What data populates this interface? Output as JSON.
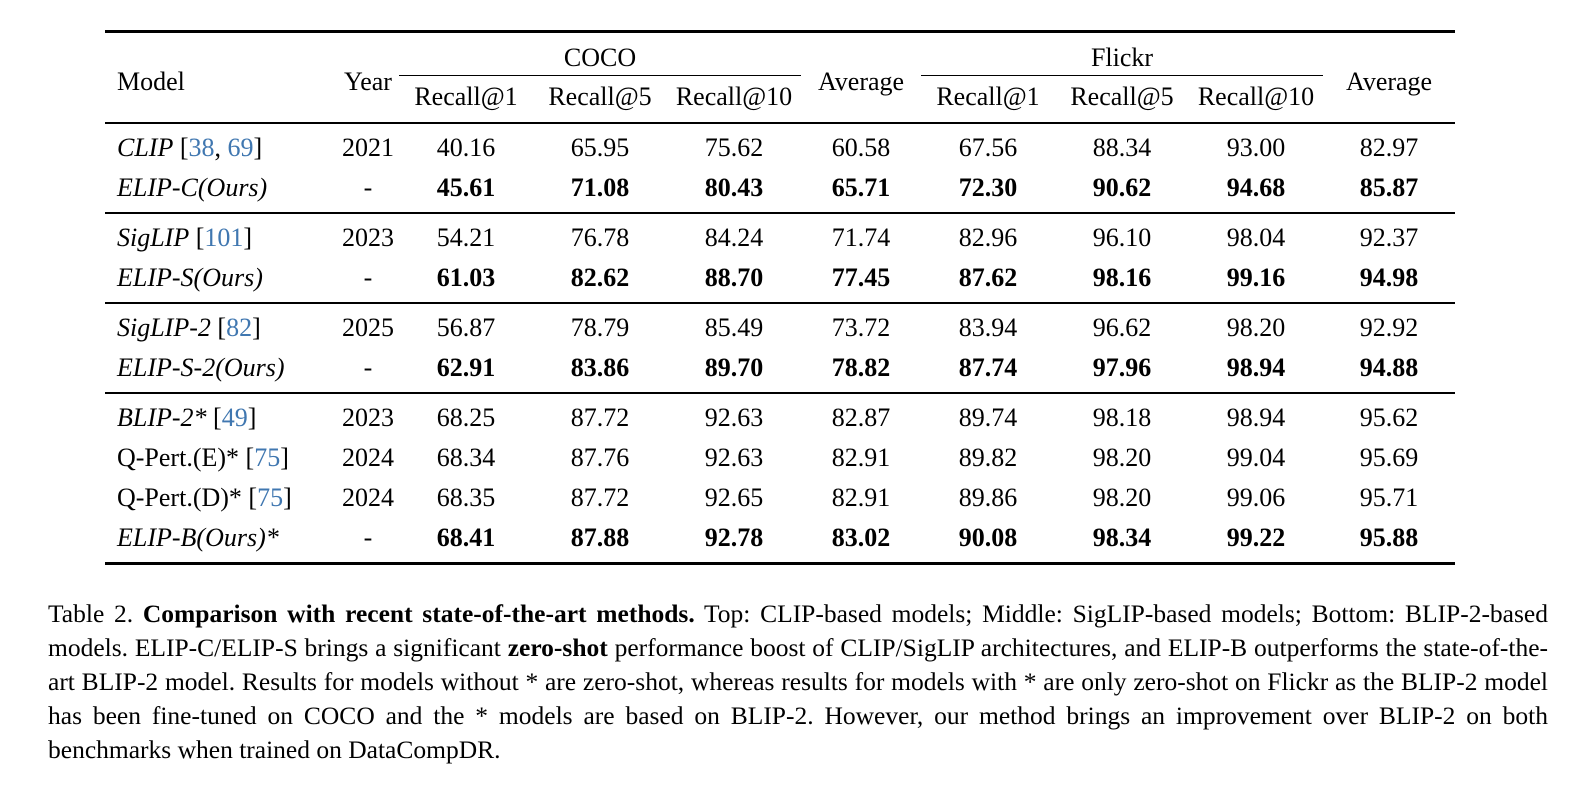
{
  "accent_color": "#4077b0",
  "table": {
    "headers": {
      "model": "Model",
      "year": "Year",
      "coco": "COCO",
      "flickr": "Flickr",
      "average_coco": "Average",
      "average_flickr": "Average",
      "recall1_coco": "Recall@1",
      "recall5_coco": "Recall@5",
      "recall10_coco": "Recall@10",
      "recall1_flickr": "Recall@1",
      "recall5_flickr": "Recall@5",
      "recall10_flickr": "Recall@10"
    },
    "groups": [
      {
        "rows": [
          {
            "model": "CLIP",
            "model_italic": true,
            "refs": [
              "38",
              "69"
            ],
            "year": "2021",
            "bold": false,
            "coco": [
              "40.16",
              "65.95",
              "75.62"
            ],
            "coco_avg": "60.58",
            "flickr": [
              "67.56",
              "88.34",
              "93.00"
            ],
            "flickr_avg": "82.97"
          },
          {
            "model": "ELIP-C(Ours)",
            "model_italic": true,
            "refs": [],
            "year": "-",
            "bold": true,
            "coco": [
              "45.61",
              "71.08",
              "80.43"
            ],
            "coco_avg": "65.71",
            "flickr": [
              "72.30",
              "90.62",
              "94.68"
            ],
            "flickr_avg": "85.87"
          }
        ]
      },
      {
        "rows": [
          {
            "model": "SigLIP",
            "model_italic": true,
            "refs": [
              "101"
            ],
            "year": "2023",
            "bold": false,
            "coco": [
              "54.21",
              "76.78",
              "84.24"
            ],
            "coco_avg": "71.74",
            "flickr": [
              "82.96",
              "96.10",
              "98.04"
            ],
            "flickr_avg": "92.37"
          },
          {
            "model": "ELIP-S(Ours)",
            "model_italic": true,
            "refs": [],
            "year": "-",
            "bold": true,
            "coco": [
              "61.03",
              "82.62",
              "88.70"
            ],
            "coco_avg": "77.45",
            "flickr": [
              "87.62",
              "98.16",
              "99.16"
            ],
            "flickr_avg": "94.98"
          }
        ]
      },
      {
        "rows": [
          {
            "model": "SigLIP-2",
            "model_italic": true,
            "refs": [
              "82"
            ],
            "year": "2025",
            "bold": false,
            "coco": [
              "56.87",
              "78.79",
              "85.49"
            ],
            "coco_avg": "73.72",
            "flickr": [
              "83.94",
              "96.62",
              "98.20"
            ],
            "flickr_avg": "92.92"
          },
          {
            "model": "ELIP-S-2(Ours)",
            "model_italic": true,
            "refs": [],
            "year": "-",
            "bold": true,
            "coco": [
              "62.91",
              "83.86",
              "89.70"
            ],
            "coco_avg": "78.82",
            "flickr": [
              "87.74",
              "97.96",
              "98.94"
            ],
            "flickr_avg": "94.88"
          }
        ]
      },
      {
        "rows": [
          {
            "model": "BLIP-2*",
            "model_italic": true,
            "refs": [
              "49"
            ],
            "year": "2023",
            "bold": false,
            "coco": [
              "68.25",
              "87.72",
              "92.63"
            ],
            "coco_avg": "82.87",
            "flickr": [
              "89.74",
              "98.18",
              "98.94"
            ],
            "flickr_avg": "95.62"
          },
          {
            "model": "Q-Pert.(E)*",
            "model_italic": false,
            "refs": [
              "75"
            ],
            "year": "2024",
            "bold": false,
            "coco": [
              "68.34",
              "87.76",
              "92.63"
            ],
            "coco_avg": "82.91",
            "flickr": [
              "89.82",
              "98.20",
              "99.04"
            ],
            "flickr_avg": "95.69"
          },
          {
            "model": "Q-Pert.(D)*",
            "model_italic": false,
            "refs": [
              "75"
            ],
            "year": "2024",
            "bold": false,
            "coco": [
              "68.35",
              "87.72",
              "92.65"
            ],
            "coco_avg": "82.91",
            "flickr": [
              "89.86",
              "98.20",
              "99.06"
            ],
            "flickr_avg": "95.71"
          },
          {
            "model": "ELIP-B(Ours)*",
            "model_italic": true,
            "refs": [],
            "year": "-",
            "bold": true,
            "coco": [
              "68.41",
              "87.88",
              "92.78"
            ],
            "coco_avg": "83.02",
            "flickr": [
              "90.08",
              "98.34",
              "99.22"
            ],
            "flickr_avg": "95.88"
          }
        ]
      }
    ]
  },
  "caption": {
    "segments": [
      {
        "text": "Table 2. ",
        "bold": false
      },
      {
        "text": "Comparison with recent state-of-the-art methods.",
        "bold": true
      },
      {
        "text": " Top: CLIP-based models; Middle: SigLIP-based models; Bottom: BLIP-2-based models. ELIP-C/ELIP-S brings a significant ",
        "bold": false
      },
      {
        "text": "zero-shot",
        "bold": true
      },
      {
        "text": " performance boost of CLIP/SigLIP architectures, and ELIP-B outperforms the state-of-the-art BLIP-2 model. Results for models without * are zero-shot, whereas results for models with * are only zero-shot on Flickr as the BLIP-2 model has been fine-tuned on COCO and the * models are based on BLIP-2. However, our method brings an improvement over BLIP-2 on both benchmarks when trained on DataCompDR.",
        "bold": false
      }
    ]
  }
}
